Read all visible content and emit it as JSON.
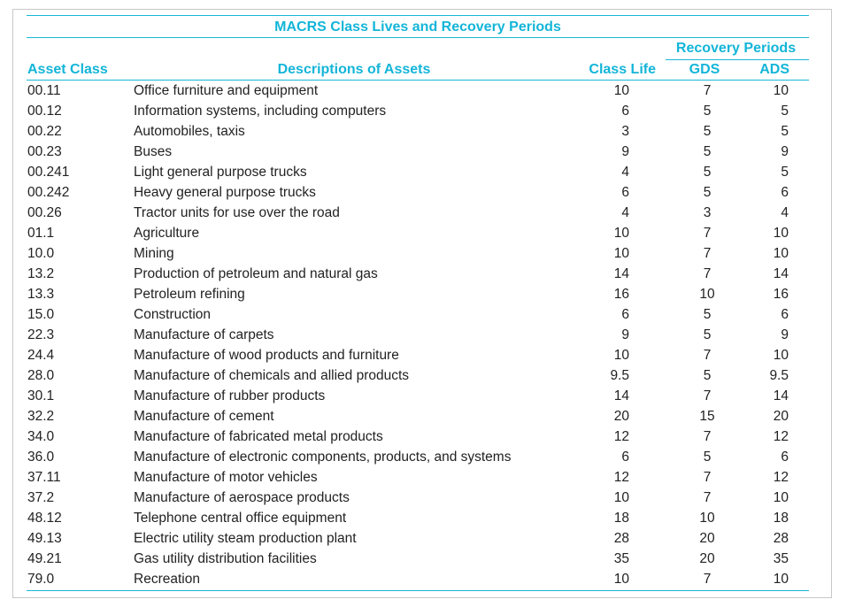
{
  "title": "MACRS Class Lives and Recovery Periods",
  "group_header": "Recovery Periods",
  "columns": {
    "asset_class": "Asset Class",
    "description": "Descriptions of Assets",
    "class_life": "Class Life",
    "gds": "GDS",
    "ads": "ADS"
  },
  "rows": [
    {
      "asset_class": "00.11",
      "description": "Office furniture and equipment",
      "class_life": "10",
      "gds": "7",
      "ads": "10"
    },
    {
      "asset_class": "00.12",
      "description": "Information systems, including computers",
      "class_life": "6",
      "gds": "5",
      "ads": "5"
    },
    {
      "asset_class": "00.22",
      "description": "Automobiles, taxis",
      "class_life": "3",
      "gds": "5",
      "ads": "5"
    },
    {
      "asset_class": "00.23",
      "description": "Buses",
      "class_life": "9",
      "gds": "5",
      "ads": "9"
    },
    {
      "asset_class": "00.241",
      "description": "Light general purpose trucks",
      "class_life": "4",
      "gds": "5",
      "ads": "5"
    },
    {
      "asset_class": "00.242",
      "description": "Heavy general purpose trucks",
      "class_life": "6",
      "gds": "5",
      "ads": "6"
    },
    {
      "asset_class": "00.26",
      "description": "Tractor units for use over the road",
      "class_life": "4",
      "gds": "3",
      "ads": "4"
    },
    {
      "asset_class": "01.1",
      "description": "Agriculture",
      "class_life": "10",
      "gds": "7",
      "ads": "10"
    },
    {
      "asset_class": "10.0",
      "description": "Mining",
      "class_life": "10",
      "gds": "7",
      "ads": "10"
    },
    {
      "asset_class": "13.2",
      "description": "Production of petroleum and natural gas",
      "class_life": "14",
      "gds": "7",
      "ads": "14"
    },
    {
      "asset_class": "13.3",
      "description": "Petroleum refining",
      "class_life": "16",
      "gds": "10",
      "ads": "16"
    },
    {
      "asset_class": "15.0",
      "description": "Construction",
      "class_life": "6",
      "gds": "5",
      "ads": "6"
    },
    {
      "asset_class": "22.3",
      "description": "Manufacture of carpets",
      "class_life": "9",
      "gds": "5",
      "ads": "9"
    },
    {
      "asset_class": "24.4",
      "description": "Manufacture of wood products and furniture",
      "class_life": "10",
      "gds": "7",
      "ads": "10"
    },
    {
      "asset_class": "28.0",
      "description": "Manufacture of chemicals and allied products",
      "class_life": "9.5",
      "gds": "5",
      "ads": "9.5"
    },
    {
      "asset_class": "30.1",
      "description": "Manufacture of rubber products",
      "class_life": "14",
      "gds": "7",
      "ads": "14"
    },
    {
      "asset_class": "32.2",
      "description": "Manufacture of cement",
      "class_life": "20",
      "gds": "15",
      "ads": "20"
    },
    {
      "asset_class": "34.0",
      "description": "Manufacture of fabricated metal products",
      "class_life": "12",
      "gds": "7",
      "ads": "12"
    },
    {
      "asset_class": "36.0",
      "description": "Manufacture of electronic components, products, and systems",
      "class_life": "6",
      "gds": "5",
      "ads": "6"
    },
    {
      "asset_class": "37.11",
      "description": "Manufacture of motor vehicles",
      "class_life": "12",
      "gds": "7",
      "ads": "12"
    },
    {
      "asset_class": "37.2",
      "description": "Manufacture of aerospace products",
      "class_life": "10",
      "gds": "7",
      "ads": "10"
    },
    {
      "asset_class": "48.12",
      "description": "Telephone central office equipment",
      "class_life": "18",
      "gds": "10",
      "ads": "18"
    },
    {
      "asset_class": "49.13",
      "description": "Electric utility steam production plant",
      "class_life": "28",
      "gds": "20",
      "ads": "28"
    },
    {
      "asset_class": "49.21",
      "description": "Gas utility distribution facilities",
      "class_life": "35",
      "gds": "20",
      "ads": "35"
    },
    {
      "asset_class": "79.0",
      "description": "Recreation",
      "class_life": "10",
      "gds": "7",
      "ads": "10"
    }
  ],
  "colors": {
    "accent": "#13b5d8",
    "rule": "#1ab6d6",
    "text": "#222222",
    "frame": "#c8c8c8"
  }
}
